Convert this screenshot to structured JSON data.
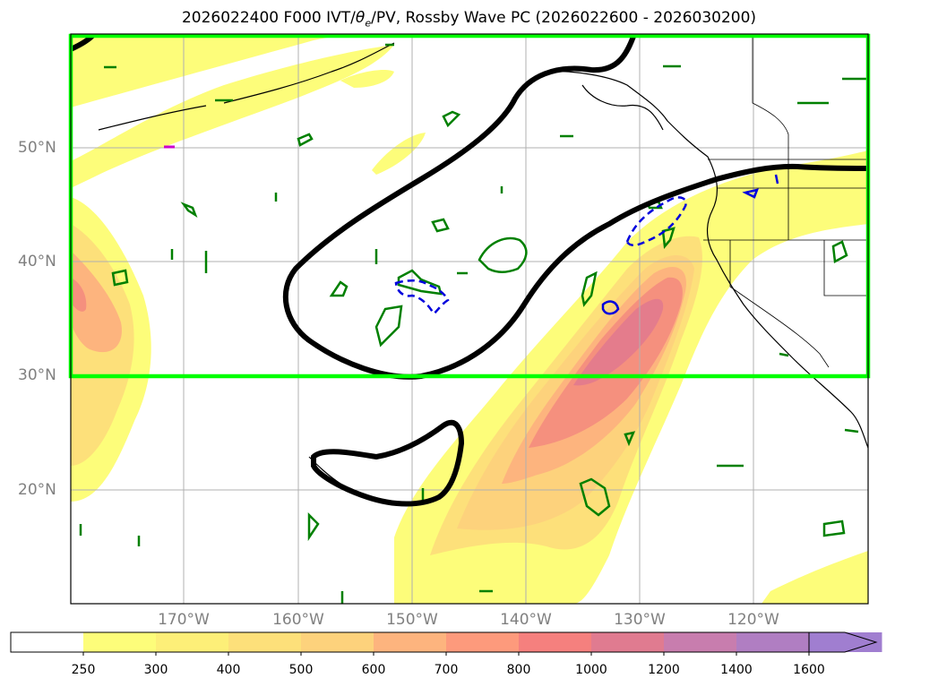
{
  "title": {
    "prefix": "2026022400 F000 IVT/",
    "theta": "θ",
    "sub": "e",
    "suffix": "/PV, Rossby Wave PC (2026022600 - 2026030200)"
  },
  "lat_labels": [
    "50°N",
    "40°N",
    "30°N",
    "20°N"
  ],
  "lon_labels": [
    "170°W",
    "160°W",
    "150°W",
    "140°W",
    "130°W",
    "120°W"
  ],
  "colorbar": {
    "ticks": [
      "250",
      "300",
      "400",
      "500",
      "600",
      "700",
      "800",
      "1000",
      "1200",
      "1400",
      "1600"
    ],
    "colors": [
      "#ffffff",
      "#fdfd7a",
      "#fdef78",
      "#fde07a",
      "#fdd27c",
      "#fdb47e",
      "#fd9a7c",
      "#f5807e",
      "#e07b90",
      "#c87dae",
      "#b07ec2",
      "#a07ed0"
    ]
  },
  "box_color": "#00ff00",
  "layers": {
    "ivt_fill": "IVT shading",
    "theta_contours": "green contours",
    "pv_contours": "blue contours",
    "rossby_wave": "black thick contour"
  }
}
